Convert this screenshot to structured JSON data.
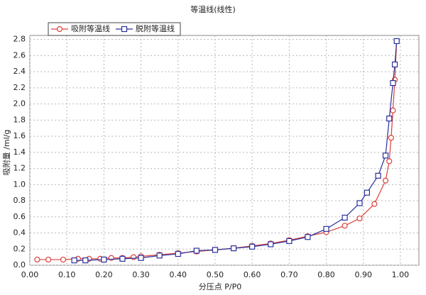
{
  "chart_data": {
    "type": "line",
    "title": "等温线(线性)",
    "x_label": "分压点 P/P0",
    "y_label": "吸附量 /ml/g",
    "xlim": [
      0,
      1.05
    ],
    "ylim": [
      0,
      2.85
    ],
    "xticks": [
      {
        "value": 0,
        "label": "0.00"
      },
      {
        "value": 0.1,
        "label": "0.10"
      },
      {
        "value": 0.2,
        "label": "0.20"
      },
      {
        "value": 0.3,
        "label": "0.30"
      },
      {
        "value": 0.4,
        "label": "0.40"
      },
      {
        "value": 0.5,
        "label": "0.50"
      },
      {
        "value": 0.6,
        "label": "0.60"
      },
      {
        "value": 0.7,
        "label": "0.70"
      },
      {
        "value": 0.8,
        "label": "0.80"
      },
      {
        "value": 0.9,
        "label": "0.90"
      },
      {
        "value": 1,
        "label": "1.00"
      }
    ],
    "yticks": [
      {
        "value": 0,
        "label": "0.0"
      },
      {
        "value": 0.2,
        "label": "0.2"
      },
      {
        "value": 0.4,
        "label": "0.4"
      },
      {
        "value": 0.6,
        "label": "0.6"
      },
      {
        "value": 0.8,
        "label": "0.8"
      },
      {
        "value": 1,
        "label": "1.0"
      },
      {
        "value": 1.2,
        "label": "1.2"
      },
      {
        "value": 1.4,
        "label": "1.4"
      },
      {
        "value": 1.6,
        "label": "1.6"
      },
      {
        "value": 1.8,
        "label": "1.8"
      },
      {
        "value": 2,
        "label": "2.0"
      },
      {
        "value": 2.2,
        "label": "2.2"
      },
      {
        "value": 2.4,
        "label": "2.4"
      },
      {
        "value": 2.6,
        "label": "2.6"
      },
      {
        "value": 2.8,
        "label": "2.8"
      }
    ],
    "grid": true,
    "series": [
      {
        "name": "吸附等温线",
        "color": "#d9403a",
        "marker": "circle",
        "x": [
          0.02,
          0.05,
          0.09,
          0.13,
          0.16,
          0.19,
          0.22,
          0.25,
          0.28,
          0.3,
          0.35,
          0.4,
          0.45,
          0.5,
          0.55,
          0.6,
          0.65,
          0.7,
          0.75,
          0.8,
          0.85,
          0.89,
          0.93,
          0.96,
          0.97,
          0.975,
          0.98,
          0.985,
          0.99
        ],
        "values": [
          0.07,
          0.07,
          0.07,
          0.08,
          0.08,
          0.08,
          0.09,
          0.09,
          0.1,
          0.11,
          0.13,
          0.15,
          0.17,
          0.19,
          0.21,
          0.24,
          0.27,
          0.31,
          0.36,
          0.41,
          0.49,
          0.58,
          0.76,
          1.05,
          1.29,
          1.58,
          1.92,
          2.3,
          2.78
        ]
      },
      {
        "name": "脱附等温线",
        "color": "#2a2f9a",
        "marker": "square",
        "x": [
          0.12,
          0.15,
          0.2,
          0.25,
          0.3,
          0.35,
          0.4,
          0.45,
          0.5,
          0.55,
          0.6,
          0.65,
          0.7,
          0.75,
          0.8,
          0.85,
          0.89,
          0.91,
          0.94,
          0.96,
          0.97,
          0.98,
          0.985,
          0.99
        ],
        "values": [
          0.06,
          0.06,
          0.07,
          0.08,
          0.09,
          0.12,
          0.14,
          0.18,
          0.19,
          0.21,
          0.23,
          0.26,
          0.3,
          0.35,
          0.45,
          0.59,
          0.77,
          0.9,
          1.11,
          1.36,
          1.82,
          2.26,
          2.49,
          2.78
        ]
      }
    ]
  }
}
